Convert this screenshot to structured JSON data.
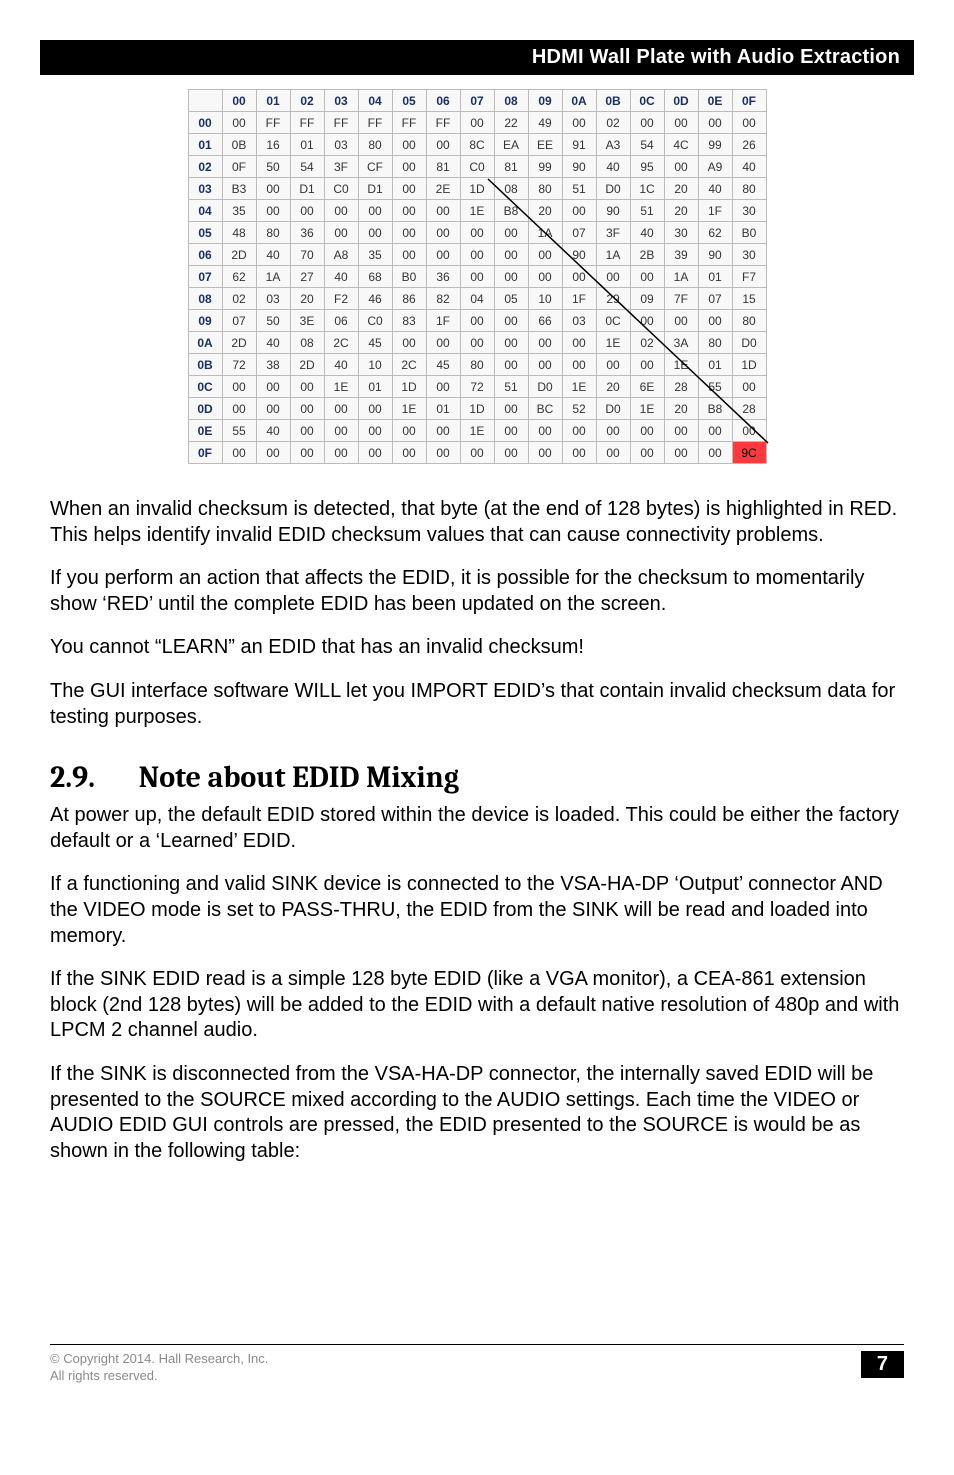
{
  "header": {
    "title": "HDMI Wall Plate with Audio Extraction"
  },
  "edid_table": {
    "col_headers": [
      "00",
      "01",
      "02",
      "03",
      "04",
      "05",
      "06",
      "07",
      "08",
      "09",
      "0A",
      "0B",
      "0C",
      "0D",
      "0E",
      "0F"
    ],
    "row_headers": [
      "00",
      "01",
      "02",
      "03",
      "04",
      "05",
      "06",
      "07",
      "08",
      "09",
      "0A",
      "0B",
      "0C",
      "0D",
      "0E",
      "0F"
    ],
    "rows": [
      [
        "00",
        "FF",
        "FF",
        "FF",
        "FF",
        "FF",
        "FF",
        "00",
        "22",
        "49",
        "00",
        "02",
        "00",
        "00",
        "00",
        "00"
      ],
      [
        "0B",
        "16",
        "01",
        "03",
        "80",
        "00",
        "00",
        "8C",
        "EA",
        "EE",
        "91",
        "A3",
        "54",
        "4C",
        "99",
        "26"
      ],
      [
        "0F",
        "50",
        "54",
        "3F",
        "CF",
        "00",
        "81",
        "C0",
        "81",
        "99",
        "90",
        "40",
        "95",
        "00",
        "A9",
        "40"
      ],
      [
        "B3",
        "00",
        "D1",
        "C0",
        "D1",
        "00",
        "2E",
        "1D",
        "08",
        "80",
        "51",
        "D0",
        "1C",
        "20",
        "40",
        "80"
      ],
      [
        "35",
        "00",
        "00",
        "00",
        "00",
        "00",
        "00",
        "1E",
        "B8",
        "20",
        "00",
        "90",
        "51",
        "20",
        "1F",
        "30"
      ],
      [
        "48",
        "80",
        "36",
        "00",
        "00",
        "00",
        "00",
        "00",
        "00",
        "1A",
        "07",
        "3F",
        "40",
        "30",
        "62",
        "B0"
      ],
      [
        "2D",
        "40",
        "70",
        "A8",
        "35",
        "00",
        "00",
        "00",
        "00",
        "00",
        "90",
        "1A",
        "2B",
        "39",
        "90",
        "30"
      ],
      [
        "62",
        "1A",
        "27",
        "40",
        "68",
        "B0",
        "36",
        "00",
        "00",
        "00",
        "00",
        "00",
        "00",
        "1A",
        "01",
        "F7"
      ],
      [
        "02",
        "03",
        "20",
        "F2",
        "46",
        "86",
        "82",
        "04",
        "05",
        "10",
        "1F",
        "29",
        "09",
        "7F",
        "07",
        "15"
      ],
      [
        "07",
        "50",
        "3E",
        "06",
        "C0",
        "83",
        "1F",
        "00",
        "00",
        "66",
        "03",
        "0C",
        "00",
        "00",
        "00",
        "80"
      ],
      [
        "2D",
        "40",
        "08",
        "2C",
        "45",
        "00",
        "00",
        "00",
        "00",
        "00",
        "00",
        "1E",
        "02",
        "3A",
        "80",
        "D0"
      ],
      [
        "72",
        "38",
        "2D",
        "40",
        "10",
        "2C",
        "45",
        "80",
        "00",
        "00",
        "00",
        "00",
        "00",
        "1E",
        "01",
        "1D"
      ],
      [
        "00",
        "00",
        "00",
        "1E",
        "01",
        "1D",
        "00",
        "72",
        "51",
        "D0",
        "1E",
        "20",
        "6E",
        "28",
        "55",
        "00"
      ],
      [
        "00",
        "00",
        "00",
        "00",
        "00",
        "1E",
        "01",
        "1D",
        "00",
        "BC",
        "52",
        "D0",
        "1E",
        "20",
        "B8",
        "28"
      ],
      [
        "55",
        "40",
        "00",
        "00",
        "00",
        "00",
        "00",
        "1E",
        "00",
        "00",
        "00",
        "00",
        "00",
        "00",
        "00",
        "00"
      ],
      [
        "00",
        "00",
        "00",
        "00",
        "00",
        "00",
        "00",
        "00",
        "00",
        "00",
        "00",
        "00",
        "00",
        "00",
        "00",
        "9C"
      ]
    ],
    "bad_cell": {
      "row": 15,
      "col": 15
    },
    "header_color": "#1a2f66",
    "border_color": "#bbbbbb",
    "bad_color": "#ff3a3a"
  },
  "paragraphs": {
    "p1": "When an invalid checksum is detected, that byte (at the end of 128 bytes) is highlighted in RED. This helps identify invalid EDID checksum values that can cause connectivity problems.",
    "p2": "If you perform an action that affects the EDID, it is possible for the checksum to momentarily show ‘RED’ until the complete EDID has been updated on the screen.",
    "p3": "You cannot “LEARN” an EDID that has an invalid checksum!",
    "p4": "The GUI interface software WILL let you IMPORT EDID’s that contain invalid checksum data for testing purposes.",
    "p5": "At power up, the default EDID stored within the device is loaded. This could be either the factory default or a ‘Learned’ EDID.",
    "p6": "If a functioning and valid SINK device is connected to the VSA-HA-DP ‘Output’ connector AND the VIDEO mode is set to PASS-THRU, the EDID from the SINK will be read and loaded into memory.",
    "p7": "If the SINK EDID read is a simple 128 byte EDID (like a VGA monitor), a CEA-861 extension block (2nd 128 bytes) will be added to the EDID with a default native resolution of 480p and with LPCM 2 channel audio.",
    "p8": "If the SINK is disconnected from the VSA-HA-DP connector, the internally saved EDID will be presented to the SOURCE mixed according to the AUDIO settings. Each time the VIDEO or AUDIO EDID GUI controls are pressed, the EDID presented to the SOURCE is would be as shown in the following table:"
  },
  "section": {
    "number": "2.9.",
    "title": "Note about EDID Mixing"
  },
  "footer": {
    "line1": "© Copyright 2014. Hall Research, Inc.",
    "line2": "All rights reserved.",
    "page": "7"
  }
}
